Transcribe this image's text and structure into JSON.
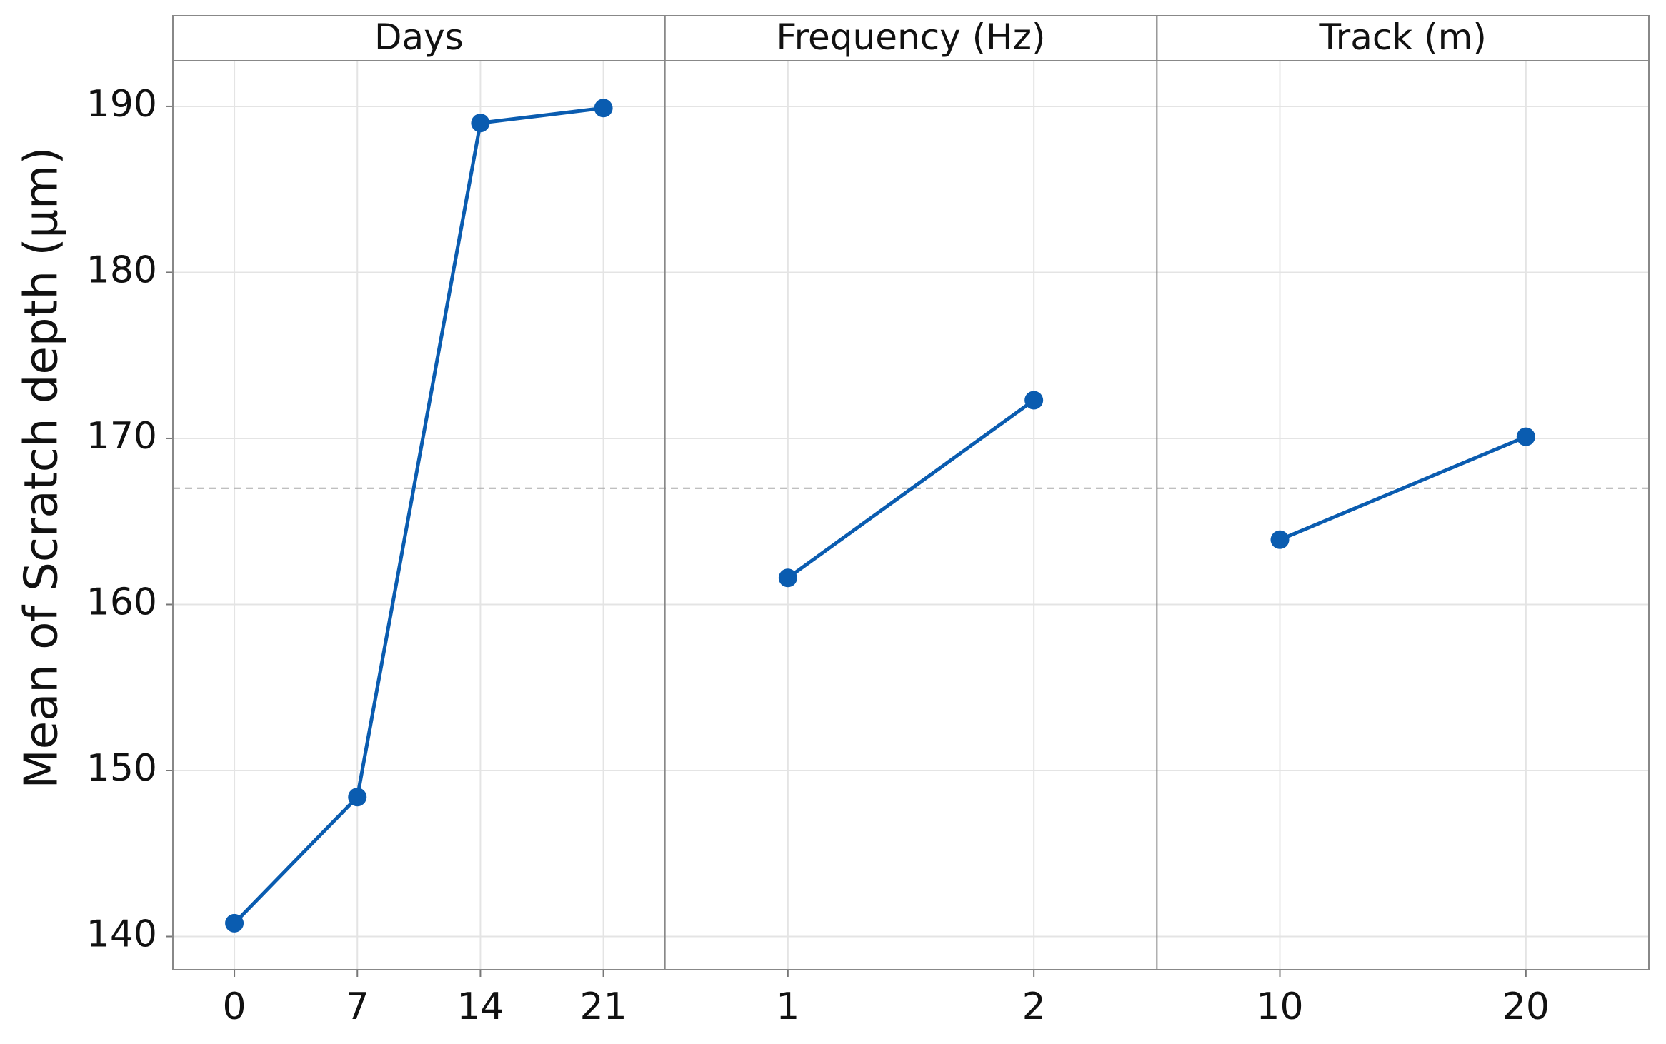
{
  "chart_data": {
    "type": "line",
    "y_label": "Mean of Scratch depth (μm)",
    "color": "#0a5cb0",
    "ylim": [
      138,
      192.75
    ],
    "yticks": [
      140,
      150,
      160,
      170,
      180,
      190
    ],
    "grid": true,
    "mean": 167.0,
    "panels": [
      {
        "title": "Days",
        "categories": [
          "0",
          "7",
          "14",
          "21"
        ],
        "values": [
          140.8,
          148.4,
          189.0,
          189.9
        ]
      },
      {
        "title": "Frequency (Hz)",
        "categories": [
          "1",
          "2"
        ],
        "values": [
          161.6,
          172.3
        ]
      },
      {
        "title": "Track (m)",
        "categories": [
          "10",
          "20"
        ],
        "values": [
          163.9,
          170.1
        ]
      }
    ]
  }
}
